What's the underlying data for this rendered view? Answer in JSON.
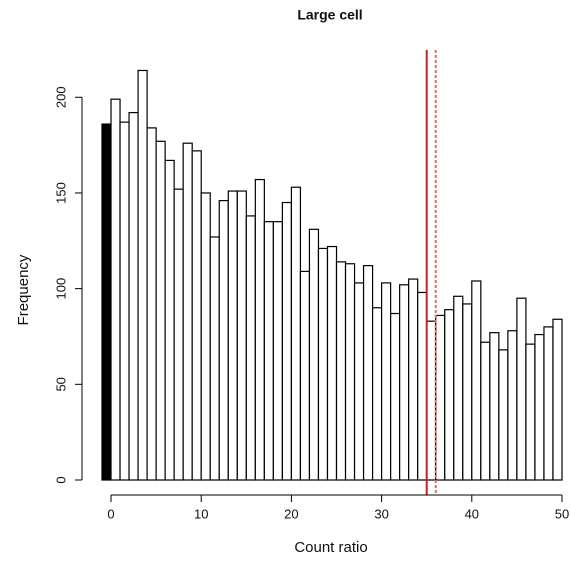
{
  "chart_data": {
    "type": "histogram",
    "title": "Large cell",
    "xlabel": "Count ratio",
    "ylabel": "Frequency",
    "bins": [
      -1,
      0,
      1,
      2,
      3,
      4,
      5,
      6,
      7,
      8,
      9,
      10,
      11,
      12,
      13,
      14,
      15,
      16,
      17,
      18,
      19,
      20,
      21,
      22,
      23,
      24,
      25,
      26,
      27,
      28,
      29,
      30,
      31,
      32,
      33,
      34,
      35,
      36,
      37,
      38,
      39,
      40,
      41,
      42,
      43,
      44,
      45,
      46,
      47,
      48,
      49,
      50
    ],
    "values": [
      186,
      199,
      187,
      192,
      214,
      184,
      177,
      167,
      152,
      176,
      172,
      150,
      127,
      146,
      151,
      151,
      138,
      157,
      135,
      135,
      145,
      153,
      109,
      131,
      121,
      122,
      114,
      113,
      103,
      112,
      90,
      103,
      87,
      102,
      105,
      98,
      83,
      86,
      89,
      96,
      92,
      104,
      72,
      77,
      68,
      78,
      95,
      71,
      76,
      80,
      84
    ],
    "color": "#ffffff",
    "edge_color": "#000000",
    "highlight": {
      "bin_start": -1,
      "color": "#000000"
    },
    "xlim": [
      -1,
      50
    ],
    "ylim": [
      0,
      220
    ],
    "xticks": [
      0,
      10,
      20,
      30,
      40,
      50
    ],
    "yticks": [
      0,
      50,
      100,
      150,
      200
    ],
    "vlines": [
      {
        "x": 35,
        "color": "#cc2020",
        "dashed": false
      },
      {
        "x": 36,
        "color": "#e07050",
        "dashed": true
      }
    ]
  }
}
